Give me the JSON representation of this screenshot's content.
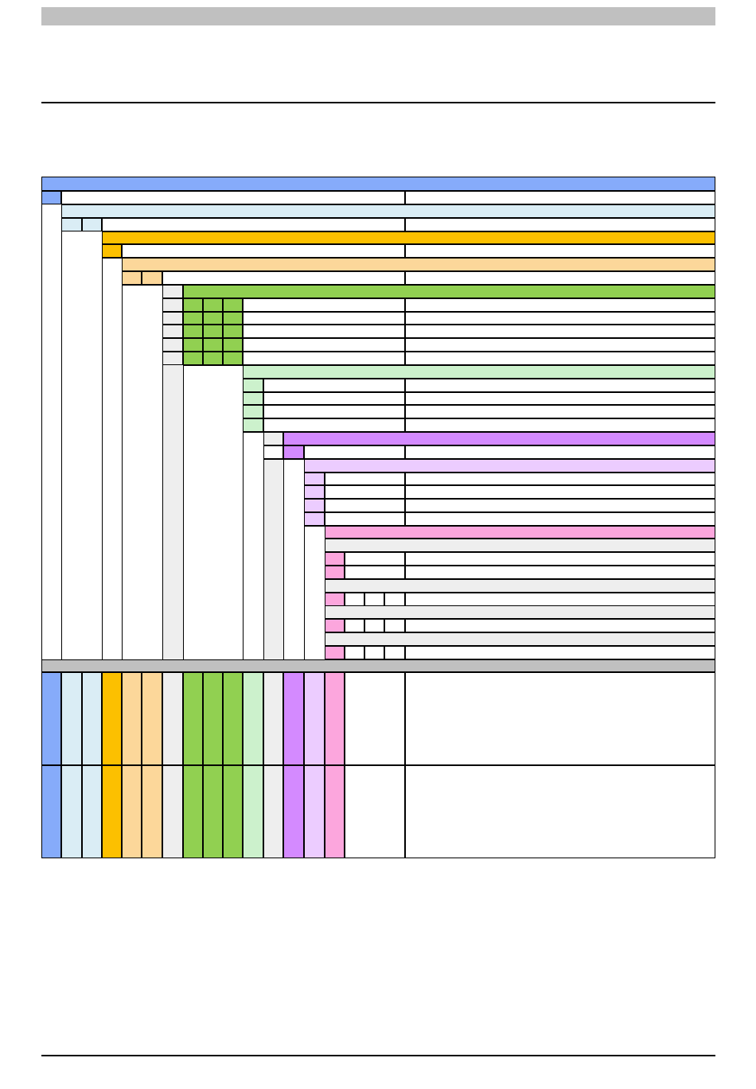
{
  "colors": {
    "level1": "#86abfa",
    "level2": "#daedf5",
    "level3": "#fcc000",
    "level4": "#fcd79a",
    "spacer": "#eeeeee",
    "level5": "#91d051",
    "level6": "#ccf1cc",
    "level7": "#d48aff",
    "level8": "#ecccff",
    "level9": "#fca6dd",
    "gray_band": "#c0c0c0",
    "rule": "#000000"
  },
  "page": {
    "header_band": "",
    "footer_text": ""
  },
  "table": {
    "title": "",
    "rows_text": [],
    "notes": []
  }
}
